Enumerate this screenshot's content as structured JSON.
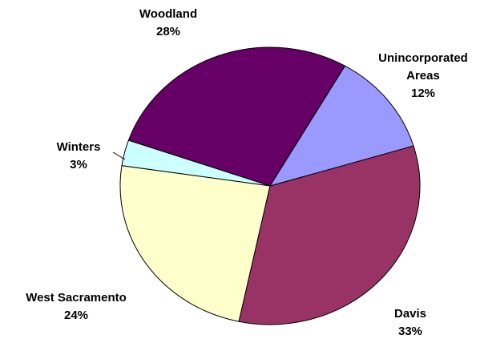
{
  "chart_data": {
    "type": "pie",
    "categories": [
      "Unincorporated Areas",
      "Davis",
      "West Sacramento",
      "Winters",
      "Woodland"
    ],
    "values": [
      12,
      33,
      24,
      3,
      28
    ],
    "value_labels": [
      "12%",
      "33%",
      "24%",
      "3%",
      "28%"
    ],
    "colors": [
      "#9999ff",
      "#993366",
      "#ffffcc",
      "#ccffff",
      "#660066"
    ]
  }
}
